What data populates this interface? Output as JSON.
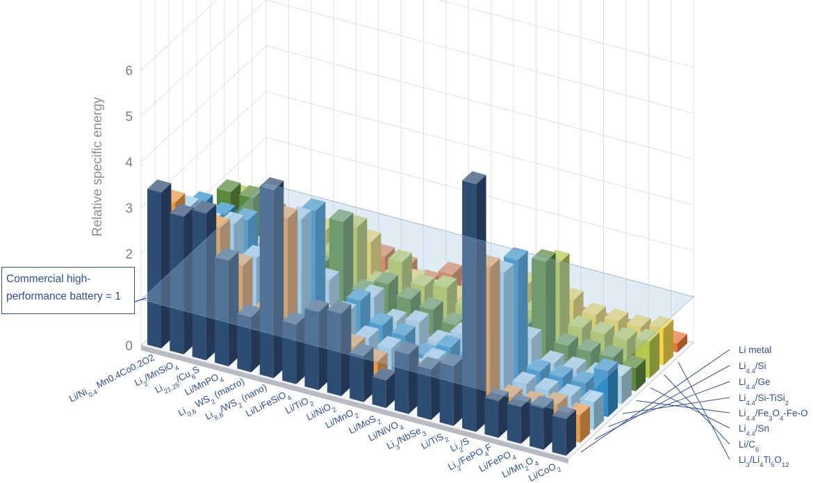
{
  "chart_data": {
    "type": "bar",
    "subtype": "3d-grouped-bar",
    "ylabel": "Relative specific energy",
    "ylim": [
      0,
      6
    ],
    "yticks": [
      "0",
      "1",
      "2",
      "3",
      "4",
      "5",
      "6"
    ],
    "grid": true,
    "reference_plane": {
      "value": 1,
      "label_lines": [
        "Commercial high-",
        "performance battery = 1"
      ]
    },
    "categories": [
      "Li/Ni<sub>0.4</sub> Mn0.4Co0.2O2",
      "Li<sub>2</sub>/MnSiO<sub>4</sub>",
      "Li<sub>21.25</sub>/Cu<sub>6</sub>S",
      "Li/MnPO<sub>4</sub>",
      "Li<sub>0.6</sub> WS<sub>2</sub> (macro)",
      "Li<sub>8.8</sub>/WS<sub>2</sub> (nano)",
      "Li/LiFeSiO<sub>4</sub>",
      "Li/TiO<sub>2</sub>",
      "Li/NiO<sub>2</sub>",
      "Li/MnO<sub>2</sub>",
      "Li/MoS<sub>2</sub>",
      "Li/NiVO<sub>4</sub>",
      "Li<sub>3</sub>/NbSe<sub>3</sub>",
      "Li/TiS<sub>2</sub>",
      "Li<sub>2</sub>/S",
      "Li<sub>2</sub>/FePO<sub>4</sub>F",
      "Li/FePO<sub>4</sub>",
      "Li/Mn<sub>2</sub>O<sub>4</sub>",
      "Li/CoO<sub>2</sub>"
    ],
    "series": [
      {
        "name": "Li metal",
        "color": "#2e4d73",
        "values": [
          3.4,
          3.0,
          3.2,
          2.3,
          1.2,
          4.1,
          1.3,
          1.7,
          1.8,
          1.0,
          0.6,
          1.3,
          1.1,
          1.3,
          5.4,
          0.8,
          0.8,
          0.9,
          0.8
        ]
      },
      {
        "name": "Li<sub>4.4</sub>/Si",
        "color": "#e99a48",
        "values": [
          2.9,
          2.6,
          2.6,
          1.9,
          1.0,
          3.2,
          0.7,
          1.3,
          0.8,
          0.6,
          0.3,
          0.6,
          0.4,
          0.7,
          3.3,
          0.6,
          0.6,
          0.7,
          0.6
        ]
      },
      {
        "name": "Li<sub>4.4</sub>/Ge",
        "color": "#9fcdeb",
        "values": [
          2.5,
          2.3,
          2.4,
          1.8,
          0.9,
          2.9,
          0.6,
          1.1,
          0.7,
          0.6,
          0.3,
          0.6,
          0.5,
          0.6,
          2.9,
          0.6,
          0.6,
          0.6,
          0.6
        ]
      },
      {
        "name": "Li<sub>4.4</sub>/Si-TiSi<sub>2</sub>",
        "color": "#2f8ec9",
        "values": [
          2.3,
          2.2,
          2.2,
          1.7,
          0.9,
          2.8,
          0.5,
          1.1,
          0.7,
          0.6,
          0.3,
          0.6,
          0.5,
          0.8,
          2.9,
          0.6,
          0.6,
          0.6,
          1.0
        ]
      },
      {
        "name": "Li<sub>4.4</sub>/Fe<sub>3</sub>O<sub>4</sub>-Fe-O",
        "color": "#a9cfe3",
        "values": [
          1.0,
          1.4,
          1.3,
          1.0,
          0.6,
          1.0,
          0.4,
          0.9,
          0.5,
          0.6,
          0.3,
          0.6,
          0.4,
          0.6,
          0.9,
          0.5,
          0.5,
          0.5,
          0.6
        ]
      },
      {
        "name": "Li<sub>4.4</sub>/Sn",
        "color": "#5b8a3c",
        "values": [
          2.0,
          2.0,
          1.8,
          1.7,
          0.9,
          2.0,
          0.6,
          0.9,
          0.7,
          0.6,
          0.4,
          0.6,
          0.5,
          0.7,
          2.3,
          0.6,
          0.6,
          0.6,
          0.5
        ]
      },
      {
        "name": "Li/C<sub>6</sub>",
        "color": "#b7c84c",
        "values": [
          1.6,
          1.3,
          1.2,
          1.0,
          0.9,
          1.6,
          0.5,
          1.1,
          0.7,
          0.8,
          0.5,
          0.6,
          0.6,
          0.8,
          2.0,
          0.7,
          0.7,
          0.7,
          0.8
        ]
      },
      {
        "name": "Li<sub>3</sub>/Li<sub>4</sub>Ti<sub>5</sub>O<sub>12</sub>",
        "color": "#f5d54a",
        "values": [
          1.3,
          1.0,
          1.0,
          1.0,
          0.2,
          1.0,
          0.3,
          0.4,
          0.3,
          0.3,
          0.6,
          0.2,
          1.0,
          0.2,
          0.9,
          0.7,
          0.7,
          0.7,
          0.8
        ]
      },
      {
        "name": "",
        "color": "#e8773a",
        "values": [
          0.4,
          0.4,
          0.2,
          0.5,
          0.2,
          0.4,
          0.3,
          0.1,
          0.4,
          0.3,
          0.1,
          0.6,
          0.1,
          0.1,
          0.2,
          0.2,
          0.2,
          0.2,
          0.2
        ]
      }
    ]
  }
}
